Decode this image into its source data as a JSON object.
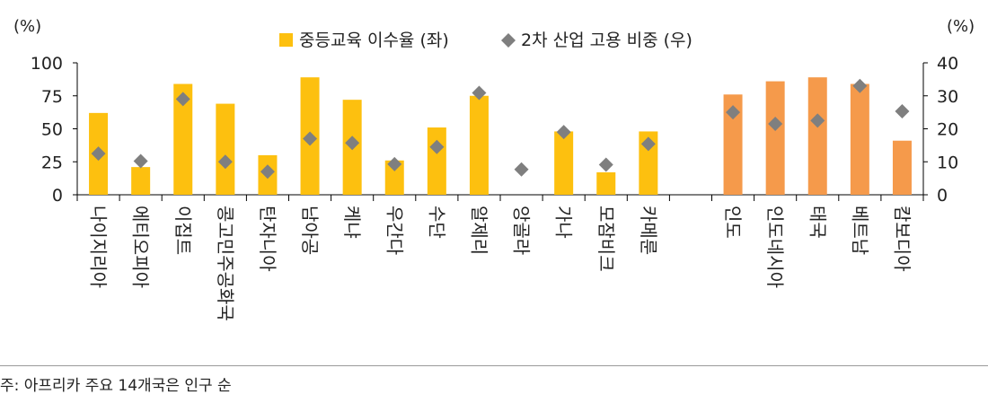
{
  "chart_data": {
    "type": "bar",
    "left_unit": "(%)",
    "right_unit": "(%)",
    "left_ylim": [
      0,
      100
    ],
    "left_ticks": [
      "0",
      "25",
      "50",
      "75",
      "100"
    ],
    "right_ylim": [
      0,
      40
    ],
    "right_ticks": [
      "0",
      "10",
      "20",
      "30",
      "40"
    ],
    "legend_position": "top-center",
    "categories": [
      "나이지리아",
      "에티오피아",
      "이집트",
      "콩고민주공화국",
      "탄자니아",
      "남아공",
      "케냐",
      "우간다",
      "수단",
      "알제리",
      "앙골라",
      "가나",
      "모잠비크",
      "카메룬",
      "",
      "인도",
      "인도네시아",
      "태국",
      "베트남",
      "캄보디아"
    ],
    "series": [
      {
        "name": "중등교육 이수율 (좌)",
        "axis": "left",
        "values": [
          62,
          21,
          84,
          69,
          30,
          89,
          72,
          26,
          51,
          75,
          null,
          48,
          17,
          48,
          null,
          76,
          86,
          89,
          84,
          41
        ]
      },
      {
        "name": "2차 산업 고용 비중 (우)",
        "axis": "right",
        "values": [
          12.5,
          10.2,
          29.0,
          10.0,
          7.0,
          17.0,
          15.7,
          9.3,
          14.5,
          30.9,
          7.7,
          19.0,
          9.1,
          15.4,
          null,
          25.0,
          21.5,
          22.5,
          33.0,
          25.3
        ]
      }
    ],
    "colors": {
      "africa_bar": "#FDC00F",
      "asia_bar": "#F59A4B",
      "marker": "#7F7F7F"
    },
    "asia_start_index": 15
  },
  "footnote": "주: 아프리카 주요 14개국은 인구 순"
}
